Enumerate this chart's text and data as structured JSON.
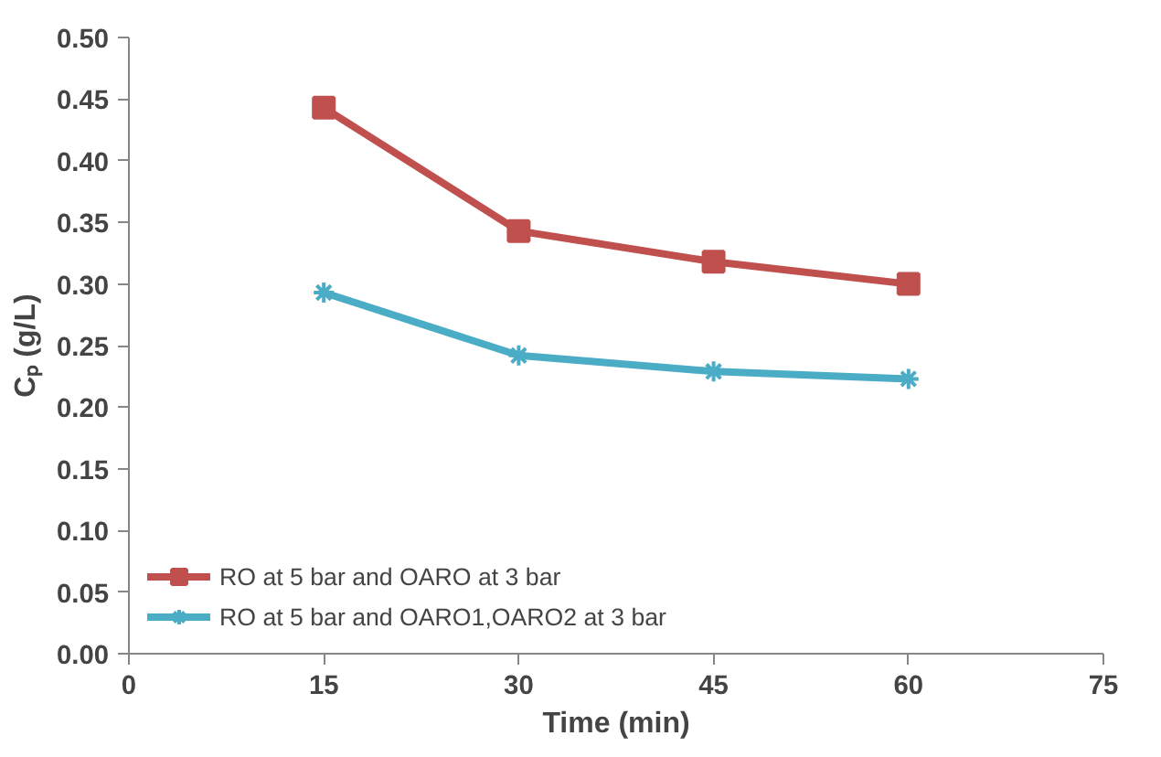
{
  "chart_data": {
    "type": "line",
    "xlabel": "Time (min)",
    "ylabel": "Cₚ (g/L)",
    "x": [
      15,
      30,
      45,
      60
    ],
    "series": [
      {
        "name": "RO at 5 bar and OARO at 3 bar",
        "color": "#c0504d",
        "marker": "square",
        "values": [
          0.443,
          0.343,
          0.318,
          0.3
        ]
      },
      {
        "name": "RO at 5 bar and OARO1,OARO2 at 3 bar",
        "color": "#4bacc6",
        "marker": "cross",
        "values": [
          0.293,
          0.242,
          0.229,
          0.223
        ]
      }
    ],
    "xlim": [
      0,
      75
    ],
    "xticks": [
      0,
      15,
      30,
      45,
      60,
      75
    ],
    "ylim": [
      0,
      0.5
    ],
    "yticks": [
      {
        "value": 0,
        "label": "0.00"
      },
      {
        "value": 0.05,
        "label": "0.05"
      },
      {
        "value": 0.1,
        "label": "0.10"
      },
      {
        "value": 0.15,
        "label": "0.15"
      },
      {
        "value": 0.2,
        "label": "0.20"
      },
      {
        "value": 0.25,
        "label": "0.25"
      },
      {
        "value": 0.3,
        "label": "0.30"
      },
      {
        "value": 0.35,
        "label": "0.35"
      },
      {
        "value": 0.4,
        "label": "0.40"
      },
      {
        "value": 0.45,
        "label": "0.45"
      },
      {
        "value": 0.5,
        "label": "0.50"
      }
    ],
    "grid": false,
    "legend": "bottom left",
    "line_style": "solid"
  }
}
